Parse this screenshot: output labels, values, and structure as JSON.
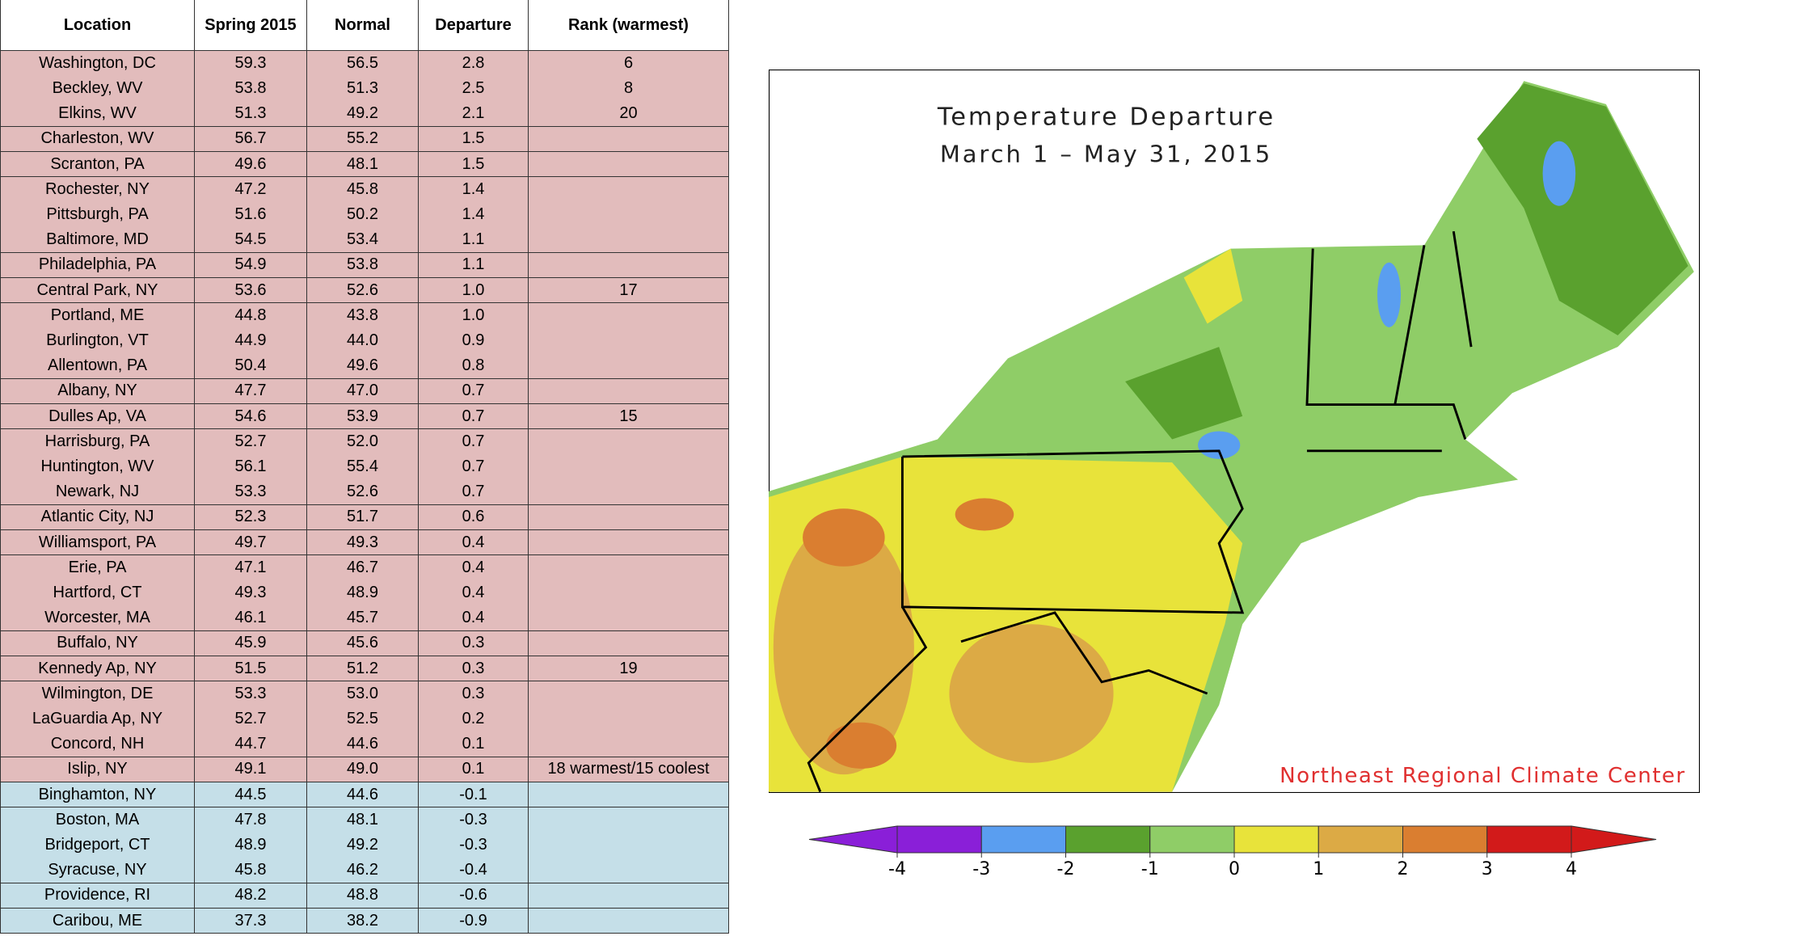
{
  "table": {
    "columns": [
      "Location",
      "Spring 2015",
      "Normal",
      "Departure",
      "Rank (warmest)"
    ],
    "rows": [
      {
        "location": "Washington, DC",
        "spring": "59.3",
        "normal": "56.5",
        "departure": "2.8",
        "rank": "6"
      },
      {
        "location": "Beckley, WV",
        "spring": "53.8",
        "normal": "51.3",
        "departure": "2.5",
        "rank": "8"
      },
      {
        "location": "Elkins, WV",
        "spring": "51.3",
        "normal": "49.2",
        "departure": "2.1",
        "rank": "20"
      },
      {
        "location": "Charleston, WV",
        "spring": "56.7",
        "normal": "55.2",
        "departure": "1.5"
      },
      {
        "location": "Scranton, PA",
        "spring": "49.6",
        "normal": "48.1",
        "departure": "1.5"
      },
      {
        "location": "Rochester, NY",
        "spring": "47.2",
        "normal": "45.8",
        "departure": "1.4"
      },
      {
        "location": "Pittsburgh, PA",
        "spring": "51.6",
        "normal": "50.2",
        "departure": "1.4"
      },
      {
        "location": "Baltimore, MD",
        "spring": "54.5",
        "normal": "53.4",
        "departure": "1.1"
      },
      {
        "location": "Philadelphia, PA",
        "spring": "54.9",
        "normal": "53.8",
        "departure": "1.1"
      },
      {
        "location": "Central Park, NY",
        "spring": "53.6",
        "normal": "52.6",
        "departure": "1.0",
        "rank": "17"
      },
      {
        "location": "Portland, ME",
        "spring": "44.8",
        "normal": "43.8",
        "departure": "1.0"
      },
      {
        "location": "Burlington, VT",
        "spring": "44.9",
        "normal": "44.0",
        "departure": "0.9"
      },
      {
        "location": "Allentown, PA",
        "spring": "50.4",
        "normal": "49.6",
        "departure": "0.8"
      },
      {
        "location": "Albany, NY",
        "spring": "47.7",
        "normal": "47.0",
        "departure": "0.7"
      },
      {
        "location": "Dulles Ap, VA",
        "spring": "54.6",
        "normal": "53.9",
        "departure": "0.7",
        "rank": "15"
      },
      {
        "location": "Harrisburg, PA",
        "spring": "52.7",
        "normal": "52.0",
        "departure": "0.7"
      },
      {
        "location": "Huntington, WV",
        "spring": "56.1",
        "normal": "55.4",
        "departure": "0.7"
      },
      {
        "location": "Newark, NJ",
        "spring": "53.3",
        "normal": "52.6",
        "departure": "0.7"
      },
      {
        "location": "Atlantic City, NJ",
        "spring": "52.3",
        "normal": "51.7",
        "departure": "0.6"
      },
      {
        "location": "Williamsport, PA",
        "spring": "49.7",
        "normal": "49.3",
        "departure": "0.4"
      },
      {
        "location": "Erie, PA",
        "spring": "47.1",
        "normal": "46.7",
        "departure": "0.4"
      },
      {
        "location": "Hartford, CT",
        "spring": "49.3",
        "normal": "48.9",
        "departure": "0.4"
      },
      {
        "location": "Worcester, MA",
        "spring": "46.1",
        "normal": "45.7",
        "departure": "0.4"
      },
      {
        "location": "Buffalo, NY",
        "spring": "45.9",
        "normal": "45.6",
        "departure": "0.3"
      },
      {
        "location": "Kennedy Ap, NY",
        "spring": "51.5",
        "normal": "51.2",
        "departure": "0.3",
        "rank": "19"
      },
      {
        "location": "Wilmington, DE",
        "spring": "53.3",
        "normal": "53.0",
        "departure": "0.3"
      },
      {
        "location": "LaGuardia Ap, NY",
        "spring": "52.7",
        "normal": "52.5",
        "departure": "0.2"
      },
      {
        "location": "Concord, NH",
        "spring": "44.7",
        "normal": "44.6",
        "departure": "0.1"
      },
      {
        "location": "Islip, NY",
        "spring": "49.1",
        "normal": "49.0",
        "departure": "0.1",
        "rank": "18 warmest/15 coolest"
      },
      {
        "location": "Binghamton, NY",
        "spring": "44.5",
        "normal": "44.6",
        "departure": "-0.1"
      },
      {
        "location": "Boston, MA",
        "spring": "47.8",
        "normal": "48.1",
        "departure": "-0.3"
      },
      {
        "location": "Bridgeport, CT",
        "spring": "48.9",
        "normal": "49.2",
        "departure": "-0.3"
      },
      {
        "location": "Syracuse, NY",
        "spring": "45.8",
        "normal": "46.2",
        "departure": "-0.4"
      },
      {
        "location": "Providence, RI",
        "spring": "48.2",
        "normal": "48.8",
        "departure": "-0.6"
      },
      {
        "location": "Caribou, ME",
        "spring": "37.3",
        "normal": "38.2",
        "departure": "-0.9"
      }
    ]
  },
  "map": {
    "title": "Temperature Departure",
    "subtitle": "March 1 – May 31, 2015",
    "credit": "Northeast Regional Climate Center",
    "legend": {
      "ticks": [
        -4,
        -3,
        -2,
        -1,
        0,
        1,
        2,
        3,
        4
      ],
      "colors": [
        "#8a1fd8",
        "#5a9ef0",
        "#5aa12e",
        "#8fcd67",
        "#e8e33a",
        "#dcaa45",
        "#da7e30",
        "#d21a1a"
      ]
    }
  }
}
